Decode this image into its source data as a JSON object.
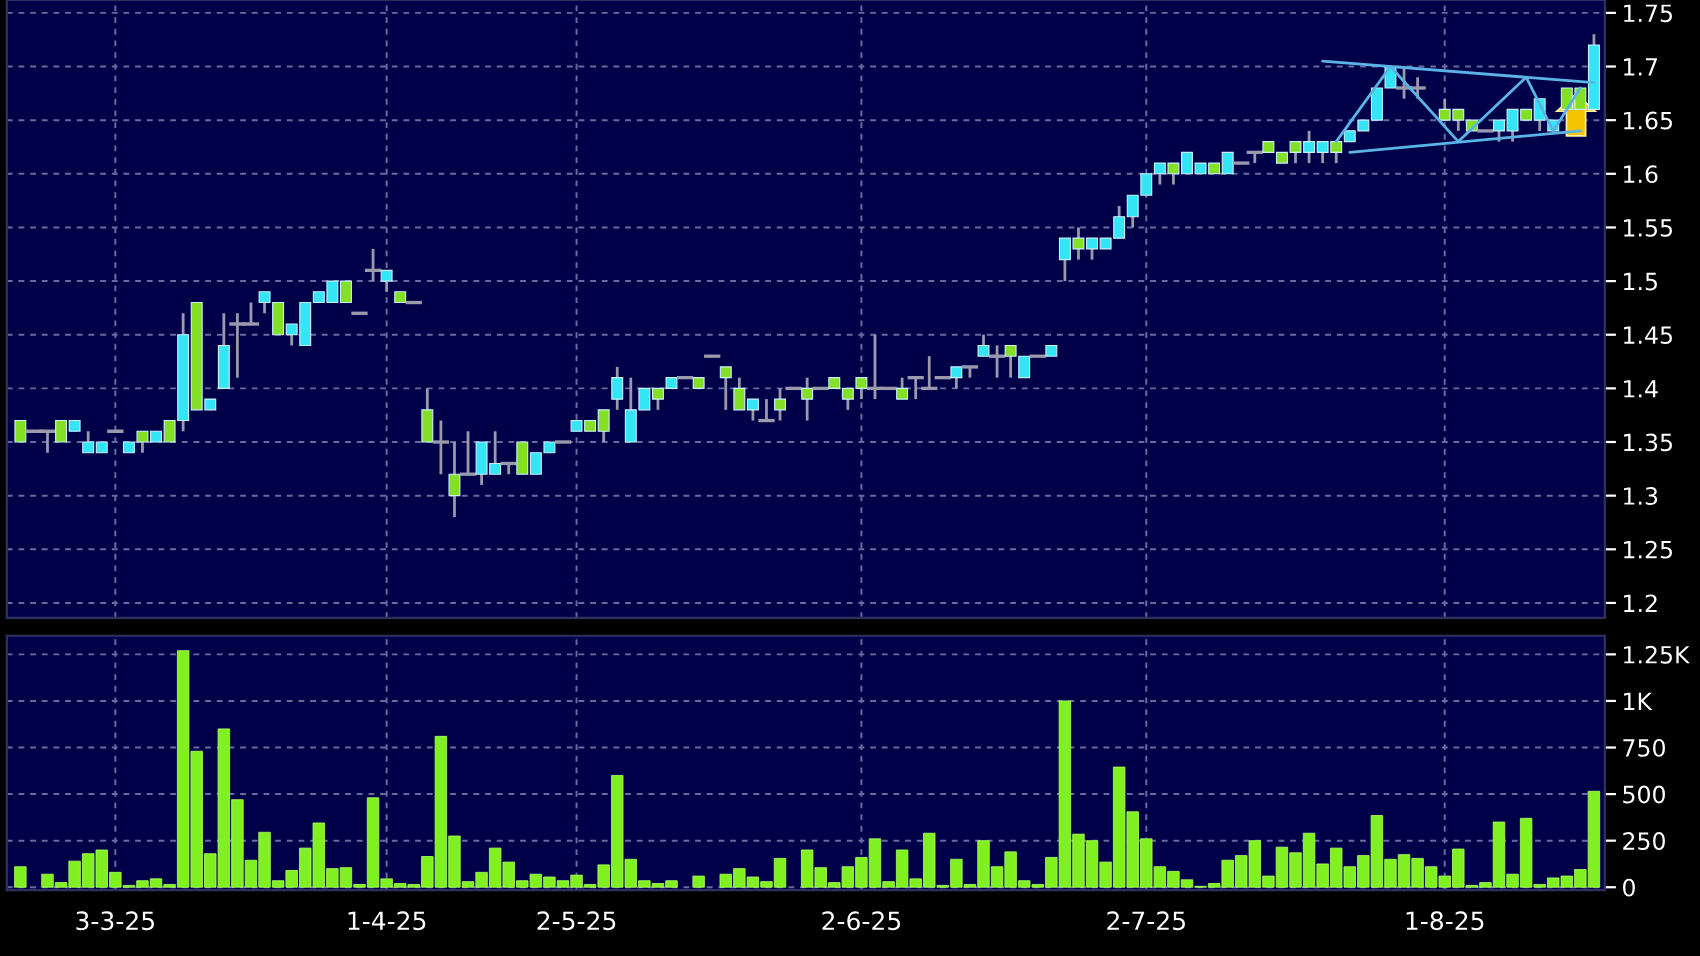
{
  "chart_data": [
    {
      "type": "candlestick",
      "categories": [
        null,
        null,
        null,
        null,
        null,
        null,
        null,
        null,
        null,
        null,
        null,
        null,
        null,
        null,
        null,
        null,
        null,
        null,
        null,
        null,
        null,
        null,
        null,
        null,
        null,
        null,
        null,
        null,
        null,
        null,
        null,
        null,
        null,
        null,
        null,
        null,
        null,
        null,
        null,
        null,
        null,
        null,
        null,
        null,
        null,
        null,
        null,
        null,
        null,
        null,
        null,
        null,
        null,
        null,
        null,
        null,
        null,
        null,
        null,
        null,
        null,
        null,
        null,
        null,
        null,
        null,
        null,
        null,
        null,
        null,
        null,
        null,
        null,
        null,
        null,
        null,
        null,
        null,
        null,
        null,
        null,
        null,
        null,
        null,
        null,
        null,
        null,
        null,
        null,
        null,
        null,
        null,
        null,
        null,
        null,
        null,
        null,
        null,
        null,
        null,
        null,
        null,
        null,
        null,
        null,
        null,
        null,
        null,
        null,
        null,
        null,
        null,
        null,
        null,
        null,
        null,
        null
      ],
      "series": [
        {
          "type": "candlestick",
          "color": "#9a9aac",
          "ohlc": [
            [
              1.37,
              1.37,
              1.35,
              1.35
            ],
            [
              1.36,
              1.36,
              1.36,
              1.36
            ],
            [
              1.36,
              1.36,
              1.34,
              1.36
            ],
            [
              1.37,
              1.37,
              1.35,
              1.35
            ],
            [
              1.36,
              1.37,
              1.36,
              1.37
            ],
            [
              1.34,
              1.36,
              1.34,
              1.35
            ],
            [
              1.34,
              1.35,
              1.34,
              1.35
            ],
            [
              1.36,
              1.36,
              1.36,
              1.36
            ],
            [
              1.34,
              1.35,
              1.34,
              1.35
            ],
            [
              1.36,
              1.36,
              1.34,
              1.35
            ],
            [
              1.35,
              1.36,
              1.35,
              1.36
            ],
            [
              1.37,
              1.37,
              1.35,
              1.35
            ],
            [
              1.37,
              1.47,
              1.36,
              1.45
            ],
            [
              1.48,
              1.48,
              1.38,
              1.38
            ],
            [
              1.38,
              1.39,
              1.38,
              1.39
            ],
            [
              1.4,
              1.47,
              1.4,
              1.44
            ],
            [
              1.46,
              1.47,
              1.41,
              1.46
            ],
            [
              1.46,
              1.48,
              1.46,
              1.46
            ],
            [
              1.48,
              1.49,
              1.47,
              1.49
            ],
            [
              1.48,
              1.48,
              1.45,
              1.45
            ],
            [
              1.45,
              1.46,
              1.44,
              1.46
            ],
            [
              1.44,
              1.48,
              1.44,
              1.48
            ],
            [
              1.48,
              1.49,
              1.48,
              1.49
            ],
            [
              1.48,
              1.5,
              1.48,
              1.5
            ],
            [
              1.5,
              1.5,
              1.48,
              1.48
            ],
            [
              1.47,
              1.47,
              1.47,
              1.47
            ],
            [
              1.51,
              1.53,
              1.5,
              1.51
            ],
            [
              1.5,
              1.51,
              1.49,
              1.51
            ],
            [
              1.49,
              1.49,
              1.48,
              1.48
            ],
            [
              1.48,
              1.48,
              1.48,
              1.48
            ],
            [
              1.38,
              1.4,
              1.35,
              1.35
            ],
            [
              1.35,
              1.37,
              1.32,
              1.35
            ],
            [
              1.32,
              1.35,
              1.28,
              1.3
            ],
            [
              1.32,
              1.36,
              1.32,
              1.32
            ],
            [
              1.32,
              1.35,
              1.31,
              1.35
            ],
            [
              1.32,
              1.36,
              1.32,
              1.33
            ],
            [
              1.33,
              1.33,
              1.32,
              1.33
            ],
            [
              1.35,
              1.35,
              1.32,
              1.32
            ],
            [
              1.32,
              1.34,
              1.32,
              1.34
            ],
            [
              1.34,
              1.35,
              1.34,
              1.35
            ],
            [
              1.35,
              1.35,
              1.35,
              1.35
            ],
            [
              1.36,
              1.37,
              1.36,
              1.37
            ],
            [
              1.37,
              1.37,
              1.36,
              1.36
            ],
            [
              1.38,
              1.38,
              1.35,
              1.36
            ],
            [
              1.39,
              1.42,
              1.38,
              1.41
            ],
            [
              1.35,
              1.41,
              1.35,
              1.38
            ],
            [
              1.38,
              1.4,
              1.38,
              1.4
            ],
            [
              1.4,
              1.4,
              1.38,
              1.39
            ],
            [
              1.4,
              1.41,
              1.4,
              1.41
            ],
            [
              1.41,
              1.41,
              1.41,
              1.41
            ],
            [
              1.41,
              1.41,
              1.4,
              1.4
            ],
            [
              1.43,
              1.43,
              1.43,
              1.43
            ],
            [
              1.42,
              1.42,
              1.38,
              1.41
            ],
            [
              1.4,
              1.41,
              1.38,
              1.38
            ],
            [
              1.38,
              1.39,
              1.37,
              1.39
            ],
            [
              1.37,
              1.39,
              1.37,
              1.37
            ],
            [
              1.39,
              1.4,
              1.37,
              1.38
            ],
            [
              1.4,
              1.4,
              1.4,
              1.4
            ],
            [
              1.4,
              1.41,
              1.37,
              1.39
            ],
            [
              1.4,
              1.4,
              1.4,
              1.4
            ],
            [
              1.41,
              1.41,
              1.4,
              1.4
            ],
            [
              1.4,
              1.4,
              1.38,
              1.39
            ],
            [
              1.41,
              1.41,
              1.39,
              1.4
            ],
            [
              1.4,
              1.45,
              1.39,
              1.4
            ],
            [
              1.4,
              1.4,
              1.4,
              1.4
            ],
            [
              1.4,
              1.41,
              1.39,
              1.39
            ],
            [
              1.41,
              1.41,
              1.39,
              1.41
            ],
            [
              1.4,
              1.43,
              1.4,
              1.4
            ],
            [
              1.41,
              1.41,
              1.41,
              1.41
            ],
            [
              1.41,
              1.42,
              1.4,
              1.42
            ],
            [
              1.42,
              1.42,
              1.41,
              1.42
            ],
            [
              1.43,
              1.45,
              1.43,
              1.44
            ],
            [
              1.43,
              1.44,
              1.41,
              1.43
            ],
            [
              1.44,
              1.44,
              1.41,
              1.43
            ],
            [
              1.41,
              1.43,
              1.41,
              1.43
            ],
            [
              1.43,
              1.43,
              1.43,
              1.43
            ],
            [
              1.43,
              1.44,
              1.43,
              1.44
            ],
            [
              1.52,
              1.54,
              1.5,
              1.54
            ],
            [
              1.54,
              1.55,
              1.52,
              1.53
            ],
            [
              1.53,
              1.54,
              1.52,
              1.54
            ],
            [
              1.53,
              1.54,
              1.53,
              1.54
            ],
            [
              1.54,
              1.57,
              1.54,
              1.56
            ],
            [
              1.56,
              1.58,
              1.55,
              1.58
            ],
            [
              1.58,
              1.6,
              1.58,
              1.6
            ],
            [
              1.6,
              1.61,
              1.59,
              1.61
            ],
            [
              1.61,
              1.61,
              1.59,
              1.6
            ],
            [
              1.6,
              1.62,
              1.6,
              1.62
            ],
            [
              1.6,
              1.61,
              1.6,
              1.61
            ],
            [
              1.61,
              1.61,
              1.6,
              1.6
            ],
            [
              1.6,
              1.62,
              1.6,
              1.62
            ],
            [
              1.61,
              1.61,
              1.61,
              1.61
            ],
            [
              1.62,
              1.62,
              1.61,
              1.62
            ],
            [
              1.63,
              1.63,
              1.62,
              1.62
            ],
            [
              1.62,
              1.62,
              1.61,
              1.61
            ],
            [
              1.63,
              1.63,
              1.61,
              1.62
            ],
            [
              1.62,
              1.64,
              1.61,
              1.63
            ],
            [
              1.62,
              1.63,
              1.61,
              1.63
            ],
            [
              1.63,
              1.63,
              1.61,
              1.62
            ],
            [
              1.63,
              1.64,
              1.63,
              1.64
            ],
            [
              1.64,
              1.65,
              1.64,
              1.65
            ],
            [
              1.65,
              1.68,
              1.65,
              1.68
            ],
            [
              1.68,
              1.7,
              1.68,
              1.7
            ],
            [
              1.68,
              1.7,
              1.67,
              1.68
            ],
            [
              1.68,
              1.69,
              1.67,
              1.68
            ],
            null,
            [
              1.66,
              1.67,
              1.65,
              1.65
            ],
            [
              1.66,
              1.66,
              1.64,
              1.65
            ],
            [
              1.65,
              1.65,
              1.64,
              1.64
            ],
            [
              1.64,
              1.64,
              1.64,
              1.64
            ],
            [
              1.64,
              1.65,
              1.63,
              1.65
            ],
            [
              1.64,
              1.66,
              1.63,
              1.66
            ],
            [
              1.66,
              1.66,
              1.65,
              1.65
            ],
            [
              1.65,
              1.67,
              1.64,
              1.67
            ],
            [
              1.64,
              1.65,
              1.64,
              1.65
            ],
            [
              1.68,
              1.68,
              1.66,
              1.66
            ],
            [
              1.68,
              1.68,
              1.66,
              1.66
            ],
            [
              1.66,
              1.73,
              1.66,
              1.72
            ]
          ],
          "colors": [
            "#84e024",
            "#9a9aac",
            "#9a9aac",
            "#84e024",
            "#33e5f5",
            "#33e5f5",
            "#33e5f5",
            "#9a9aac",
            "#33e5f5",
            "#84e024",
            "#33e5f5",
            "#84e024",
            "#33e5f5",
            "#84e024",
            "#33e5f5",
            "#33e5f5",
            "#9a9aac",
            "#9a9aac",
            "#33e5f5",
            "#84e024",
            "#33e5f5",
            "#33e5f5",
            "#33e5f5",
            "#33e5f5",
            "#84e024",
            "#9a9aac",
            "#9a9aac",
            "#33e5f5",
            "#84e024",
            "#9a9aac",
            "#84e024",
            "#9a9aac",
            "#84e024",
            "#9a9aac",
            "#33e5f5",
            "#33e5f5",
            "#9a9aac",
            "#84e024",
            "#33e5f5",
            "#33e5f5",
            "#9a9aac",
            "#33e5f5",
            "#84e024",
            "#84e024",
            "#33e5f5",
            "#33e5f5",
            "#33e5f5",
            "#84e024",
            "#33e5f5",
            "#9a9aac",
            "#84e024",
            "#9a9aac",
            "#84e024",
            "#84e024",
            "#33e5f5",
            "#9a9aac",
            "#84e024",
            "#9a9aac",
            "#84e024",
            "#9a9aac",
            "#84e024",
            "#84e024",
            "#84e024",
            "#9a9aac",
            "#9a9aac",
            "#84e024",
            "#9a9aac",
            "#9a9aac",
            "#9a9aac",
            "#33e5f5",
            "#9a9aac",
            "#33e5f5",
            "#9a9aac",
            "#84e024",
            "#33e5f5",
            "#9a9aac",
            "#33e5f5",
            "#33e5f5",
            "#84e024",
            "#33e5f5",
            "#33e5f5",
            "#33e5f5",
            "#33e5f5",
            "#33e5f5",
            "#33e5f5",
            "#84e024",
            "#33e5f5",
            "#33e5f5",
            "#84e024",
            "#33e5f5",
            "#9a9aac",
            "#9a9aac",
            "#84e024",
            "#84e024",
            "#84e024",
            "#33e5f5",
            "#33e5f5",
            "#84e024",
            "#33e5f5",
            "#33e5f5",
            "#33e5f5",
            "#33e5f5",
            "#9a9aac",
            "#9a9aac",
            "#9a9aac",
            "#84e024",
            "#84e024",
            "#84e024",
            "#9a9aac",
            "#33e5f5",
            "#33e5f5",
            "#84e024",
            "#33e5f5",
            "#33e5f5",
            "#84e024",
            "#84e024",
            "#33e5f5"
          ]
        },
        {
          "type": "line",
          "color": "#5ab4e6",
          "values": [
            null,
            null,
            null,
            null,
            null,
            null,
            null,
            null,
            null,
            null,
            null,
            null,
            null,
            null,
            null,
            null,
            null,
            null,
            null,
            null,
            null,
            null,
            null,
            null,
            null,
            null,
            null,
            null,
            null,
            null,
            null,
            null,
            null,
            null,
            null,
            null,
            null,
            null,
            null,
            null,
            null,
            null,
            null,
            null,
            null,
            null,
            null,
            null,
            null,
            null,
            null,
            null,
            null,
            null,
            null,
            null,
            null,
            null,
            null,
            null,
            null,
            null,
            null,
            null,
            null,
            null,
            null,
            null,
            null,
            null,
            null,
            null,
            null,
            null,
            null,
            null,
            null,
            null,
            null,
            null,
            null,
            null,
            null,
            null,
            null,
            null,
            null,
            null,
            null,
            null,
            null,
            null,
            null,
            null,
            null,
            null,
            1.705,
            null,
            null,
            null,
            null,
            null,
            null,
            null,
            null,
            null,
            null,
            null,
            null,
            null,
            null,
            null,
            null,
            null,
            null,
            null,
            1.685
          ]
        },
        {
          "type": "line",
          "color": "#5ab4e6",
          "values": [
            null,
            null,
            null,
            null,
            null,
            null,
            null,
            null,
            null,
            null,
            null,
            null,
            null,
            null,
            null,
            null,
            null,
            null,
            null,
            null,
            null,
            null,
            null,
            null,
            null,
            null,
            null,
            null,
            null,
            null,
            null,
            null,
            null,
            null,
            null,
            null,
            null,
            null,
            null,
            null,
            null,
            null,
            null,
            null,
            null,
            null,
            null,
            null,
            null,
            null,
            null,
            null,
            null,
            null,
            null,
            null,
            null,
            null,
            null,
            null,
            null,
            null,
            null,
            null,
            null,
            null,
            null,
            null,
            null,
            null,
            null,
            null,
            null,
            null,
            null,
            null,
            null,
            null,
            null,
            null,
            null,
            null,
            null,
            null,
            null,
            null,
            null,
            null,
            null,
            null,
            null,
            null,
            null,
            null,
            null,
            null,
            null,
            null,
            1.62,
            null,
            null,
            null,
            null,
            null,
            null,
            null,
            null,
            null,
            null,
            null,
            null,
            null,
            null,
            null,
            null,
            1.64,
            null
          ]
        },
        {
          "type": "line",
          "color": "#5ab4e6",
          "values": [
            null,
            null,
            null,
            null,
            null,
            null,
            null,
            null,
            null,
            null,
            null,
            null,
            null,
            null,
            null,
            null,
            null,
            null,
            null,
            null,
            null,
            null,
            null,
            null,
            null,
            null,
            null,
            null,
            null,
            null,
            null,
            null,
            null,
            null,
            null,
            null,
            null,
            null,
            null,
            null,
            null,
            null,
            null,
            null,
            null,
            null,
            null,
            null,
            null,
            null,
            null,
            null,
            null,
            null,
            null,
            null,
            null,
            null,
            null,
            null,
            null,
            null,
            null,
            null,
            null,
            null,
            null,
            null,
            null,
            null,
            null,
            null,
            null,
            null,
            null,
            null,
            null,
            null,
            null,
            null,
            null,
            null,
            null,
            null,
            null,
            null,
            null,
            null,
            null,
            null,
            null,
            null,
            null,
            null,
            null,
            null,
            null,
            1.63,
            null,
            null,
            null,
            1.7,
            null,
            null,
            null,
            null,
            1.63,
            null,
            null,
            null,
            null,
            1.69,
            null,
            1.64,
            null,
            1.68,
            null
          ]
        }
      ],
      "ylim": [
        1.186,
        1.762
      ],
      "yticks": [
        1.2,
        1.25,
        1.3,
        1.35,
        1.4,
        1.45,
        1.5,
        1.55,
        1.6,
        1.65,
        1.7,
        1.75
      ],
      "grid": true,
      "tick_labels": "y"
    },
    {
      "type": "bar",
      "color": "#80f020",
      "categories": [
        null,
        null,
        null,
        null,
        null,
        null,
        null,
        "3-3-25",
        null,
        null,
        null,
        null,
        null,
        null,
        null,
        null,
        null,
        null,
        null,
        null,
        null,
        null,
        null,
        null,
        null,
        null,
        null,
        "1-4-25",
        null,
        null,
        null,
        null,
        null,
        null,
        null,
        null,
        null,
        null,
        null,
        null,
        null,
        "2-5-25",
        null,
        null,
        null,
        null,
        null,
        null,
        null,
        null,
        null,
        null,
        null,
        null,
        null,
        null,
        null,
        null,
        null,
        null,
        null,
        null,
        "2-6-25",
        null,
        null,
        null,
        null,
        null,
        null,
        null,
        null,
        null,
        null,
        null,
        null,
        null,
        null,
        null,
        null,
        null,
        null,
        null,
        null,
        "2-7-25",
        null,
        null,
        null,
        null,
        null,
        null,
        null,
        null,
        null,
        null,
        null,
        null,
        null,
        null,
        null,
        null,
        null,
        null,
        null,
        null,
        null,
        "1-8-25",
        null,
        null,
        null,
        null,
        null,
        null,
        null,
        null,
        null,
        null,
        null
      ],
      "values": [
        110,
        null,
        70,
        25,
        140,
        180,
        200,
        80,
        10,
        35,
        45,
        15,
        1270,
        730,
        180,
        850,
        470,
        145,
        295,
        35,
        90,
        210,
        345,
        100,
        105,
        15,
        480,
        45,
        20,
        15,
        165,
        810,
        275,
        30,
        80,
        210,
        135,
        35,
        70,
        55,
        35,
        65,
        15,
        120,
        600,
        150,
        35,
        20,
        35,
        null,
        60,
        null,
        70,
        100,
        55,
        30,
        155,
        null,
        200,
        105,
        25,
        110,
        160,
        260,
        30,
        200,
        45,
        290,
        10,
        150,
        15,
        250,
        110,
        190,
        35,
        15,
        160,
        1000,
        285,
        250,
        135,
        645,
        405,
        260,
        110,
        85,
        40,
        5,
        20,
        145,
        170,
        250,
        60,
        215,
        185,
        290,
        125,
        210,
        110,
        170,
        385,
        150,
        175,
        155,
        110,
        60,
        205,
        10,
        25,
        350,
        70,
        370,
        15,
        50,
        60,
        95,
        515
      ],
      "ylim": [
        -15,
        1350
      ],
      "yticks": [
        0,
        250,
        500,
        750,
        {
          "value": 1000,
          "label": "1K"
        },
        {
          "value": 1250,
          "label": "1.25K"
        }
      ],
      "grid": true
    }
  ]
}
